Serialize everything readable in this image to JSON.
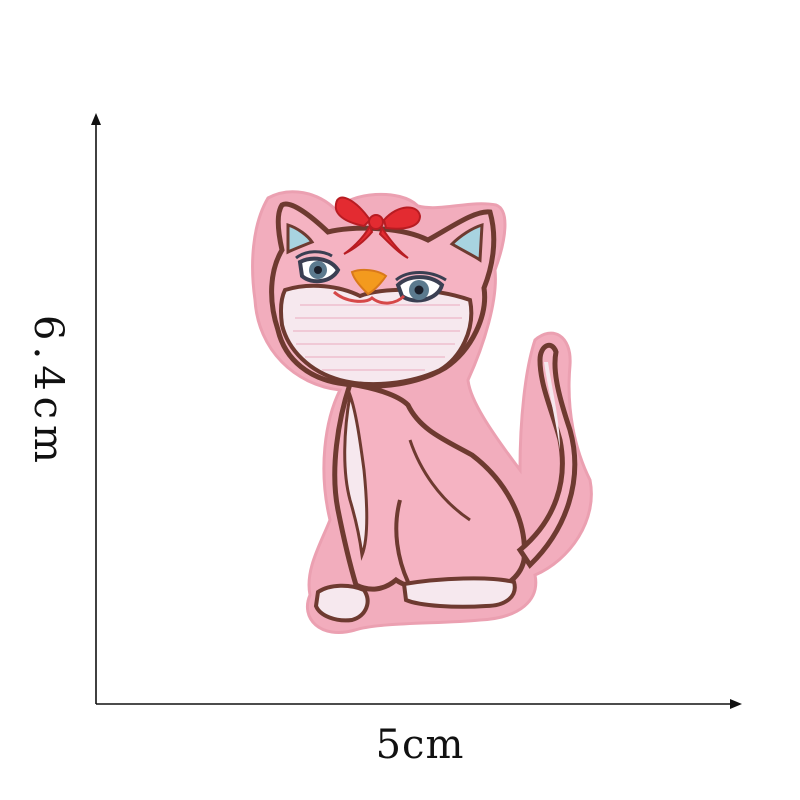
{
  "dimensions": {
    "width_label": "5cm",
    "height_label": "6.4cm"
  },
  "colors": {
    "background": "#ffffff",
    "felt": "#f2adbd",
    "felt_edge": "#eba0b1",
    "body": "#f5b3c2",
    "outline": "#6e3a30",
    "stitch_white": "#f6e8ee",
    "bow": "#e32b31",
    "nose": "#f39a1e",
    "ear_inner": "#a8d3e0",
    "eye": "#3a3f52"
  },
  "icons": {
    "patch": "cat-embroidered-patch",
    "bow": "red-bow-icon"
  }
}
